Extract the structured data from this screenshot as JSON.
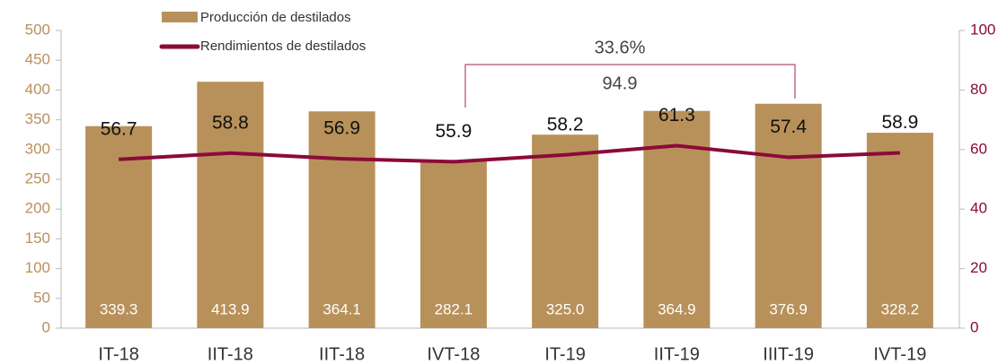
{
  "chart_data": {
    "type": "bar",
    "categories": [
      "IT-18",
      "IIT-18",
      "IIT-18",
      "IVT-18",
      "IT-19",
      "IIT-19",
      "IIIT-19",
      "IVT-19"
    ],
    "series": [
      {
        "name": "Producción de destilados",
        "type": "bar",
        "color": "#b8915a",
        "values": [
          339.3,
          413.9,
          364.1,
          282.1,
          325.0,
          364.9,
          376.9,
          328.2
        ],
        "value_labels": [
          "339.3",
          "413.9",
          "364.1",
          "282.1",
          "325.0",
          "364.9",
          "376.9",
          "328.2"
        ]
      },
      {
        "name": "Rendimientos de destilados",
        "type": "line",
        "color": "#8b0a3a",
        "axis": "y2",
        "values": [
          56.7,
          58.8,
          56.9,
          55.9,
          58.2,
          61.3,
          57.4,
          58.9
        ]
      }
    ],
    "ylim": [
      0,
      500
    ],
    "yticks": [
      0,
      50,
      100,
      150,
      200,
      250,
      300,
      350,
      400,
      450,
      500
    ],
    "y2lim": [
      0,
      100
    ],
    "y2ticks": [
      0,
      20,
      40,
      60,
      80,
      100
    ],
    "grid": false,
    "annotations": [
      "33.6%",
      "94.9"
    ]
  }
}
